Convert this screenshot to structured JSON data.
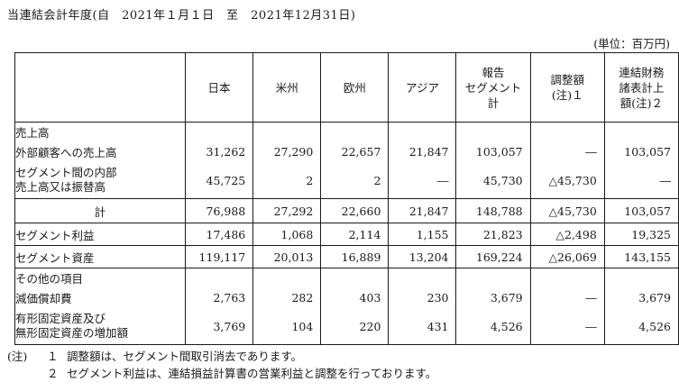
{
  "heading": "当連結会計年度(自　2021年１月１日　至　2021年12月31日)",
  "unit": "(単位：百万円)",
  "columns": {
    "japan": "日本",
    "americas": "米州",
    "europe": "欧州",
    "asia": "アジア",
    "reported_l1": "報告",
    "reported_l2": "セグメント",
    "reported_l3": "計",
    "adjust_l1": "調整額",
    "adjust_l2": "(注)１",
    "consol_l1": "連結財務",
    "consol_l2": "諸表計上",
    "consol_l3": "額(注)２"
  },
  "sections": {
    "sales": "売上高",
    "other": "その他の項目"
  },
  "rows": {
    "external": {
      "label": "外部顧客への売上高",
      "values": [
        "31,262",
        "27,290",
        "22,657",
        "21,847",
        "103,057",
        "―",
        "103,057"
      ]
    },
    "intersegment": {
      "label_l1": "セグメント間の内部",
      "label_l2": "売上高又は振替高",
      "values": [
        "45,725",
        "2",
        "2",
        "―",
        "45,730",
        "△45,730",
        "―"
      ]
    },
    "total": {
      "label": "計",
      "values": [
        "76,988",
        "27,292",
        "22,660",
        "21,847",
        "148,788",
        "△45,730",
        "103,057"
      ]
    },
    "segment_profit": {
      "label": "セグメント利益",
      "values": [
        "17,486",
        "1,068",
        "2,114",
        "1,155",
        "21,823",
        "△2,498",
        "19,325"
      ]
    },
    "segment_assets": {
      "label": "セグメント資産",
      "values": [
        "119,117",
        "20,013",
        "16,889",
        "13,204",
        "169,224",
        "△26,069",
        "143,155"
      ]
    },
    "depreciation": {
      "label": "減価償却費",
      "values": [
        "2,763",
        "282",
        "403",
        "230",
        "3,679",
        "―",
        "3,679"
      ]
    },
    "capex": {
      "label_l1": "有形固定資産及び",
      "label_l2": "無形固定資産の増加額",
      "values": [
        "3,769",
        "104",
        "220",
        "431",
        "4,526",
        "―",
        "4,526"
      ]
    }
  },
  "notes": {
    "mark": "(注)",
    "n1_num": "１",
    "n1_text": "調整額は、セグメント間取引消去であります。",
    "n2_num": "２",
    "n2_text": "セグメント利益は、連結損益計算書の営業利益と調整を行っております。"
  }
}
